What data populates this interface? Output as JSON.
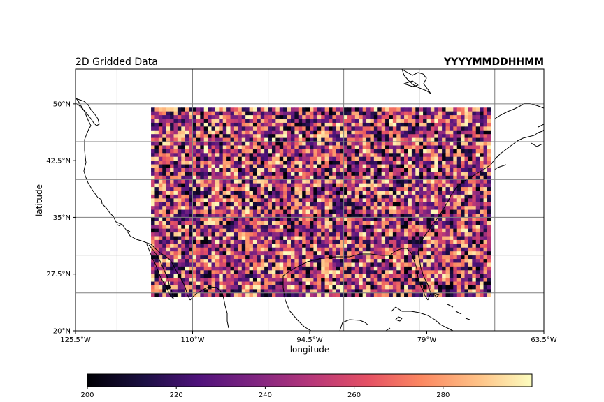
{
  "chart_data": {
    "type": "heatmap",
    "title": "2D Gridded Data",
    "title_right": "YYYYMMDDHHMM",
    "xlabel": "longitude",
    "ylabel": "latitude",
    "xlim": [
      -125.5,
      -63.5
    ],
    "ylim": [
      20,
      54.6
    ],
    "x_ticks": [
      -125.5,
      -110,
      -94.5,
      -79,
      -63.5
    ],
    "x_tick_labels": [
      "125.5°W",
      "110°W",
      "94.5°W",
      "79°W",
      "63.5°W"
    ],
    "y_ticks": [
      20,
      27.5,
      35,
      42.5,
      50
    ],
    "y_tick_labels": [
      "20°N",
      "27.5°N",
      "35°N",
      "42.5°N",
      "50°N"
    ],
    "gridlines_lon": [
      -120,
      -110,
      -100,
      -90,
      -80,
      -70
    ],
    "gridlines_lat": [
      25,
      30,
      35,
      40,
      45,
      50
    ],
    "grid": true,
    "data_extent": {
      "lon": [
        -115.5,
        -70.5
      ],
      "lat": [
        24.5,
        49.5
      ]
    },
    "grid_shape": {
      "rows": 50,
      "cols": 90
    },
    "values": "random field, uniform in [200, 300)",
    "colormap": "magma",
    "colorbar": {
      "vmin": 200,
      "vmax": 300,
      "ticks": [
        200,
        220,
        240,
        260,
        280
      ],
      "tick_labels": [
        "200",
        "220",
        "240",
        "260",
        "280"
      ],
      "label": "",
      "orientation": "horizontal"
    }
  }
}
